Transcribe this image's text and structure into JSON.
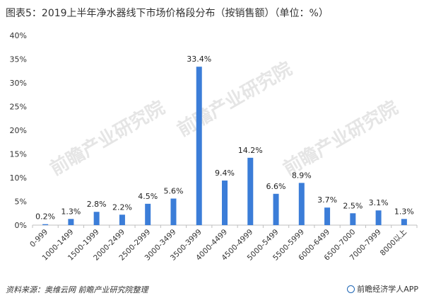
{
  "title": "图表5：2019上半年净水器线下市场价格段分布（按销售额）（单位：%）",
  "source": "资料来源：奥维云网  前瞻产业研究院整理",
  "brand": "前瞻经济学人APP",
  "watermarks": [
    "前瞻产业研究院",
    "前瞻产业研究院",
    "前瞻产业研究院"
  ],
  "colors": {
    "bar": "#3b7dd8",
    "axis": "#bfbfbf",
    "grid": "#ffffff"
  },
  "chart_data": {
    "type": "bar",
    "categories": [
      "0-999",
      "1000-1499",
      "1500-1999",
      "2000-2499",
      "2500-2999",
      "3000-3499",
      "3500-3999",
      "4000-4499",
      "4500-4999",
      "5000-5499",
      "5500-5999",
      "6000-6499",
      "6500-7000",
      "7000-7999",
      "8000以上"
    ],
    "values": [
      0.2,
      1.3,
      2.8,
      2.2,
      4.5,
      5.6,
      33.4,
      9.4,
      14.2,
      6.6,
      8.9,
      3.7,
      2.5,
      3.1,
      1.3
    ],
    "value_labels": [
      "0.2%",
      "1.3%",
      "2.8%",
      "2.2%",
      "4.5%",
      "5.6%",
      "33.4%",
      "9.4%",
      "14.2%",
      "6.6%",
      "8.9%",
      "3.7%",
      "2.5%",
      "3.1%",
      "1.3%"
    ],
    "yticks": [
      "0%",
      "5%",
      "10%",
      "15%",
      "20%",
      "25%",
      "30%",
      "35%",
      "40%"
    ],
    "ylim": [
      0,
      40
    ],
    "grid": false
  }
}
